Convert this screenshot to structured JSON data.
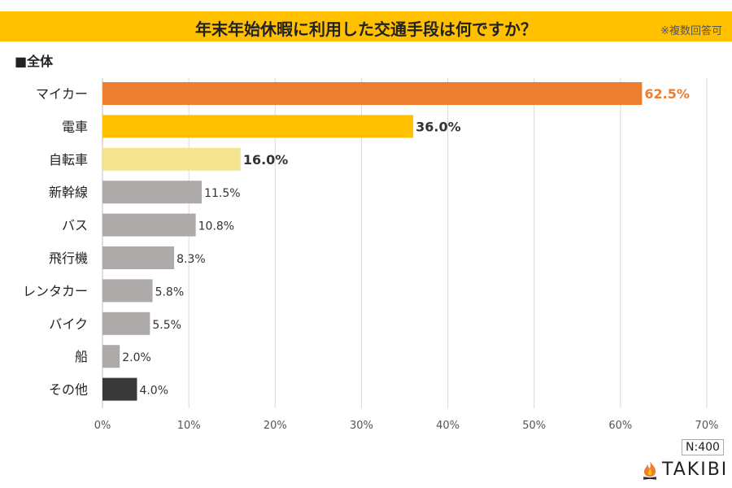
{
  "header": {
    "title": "年末年始休暇に利用した交通手段は何ですか？",
    "note": "※複数回答可"
  },
  "subtitle": "■全体",
  "sample": "N:400",
  "logo": "TAKIBI",
  "chart_data": {
    "type": "bar",
    "orientation": "horizontal",
    "categories": [
      "マイカー",
      "電車",
      "自転車",
      "新幹線",
      "バス",
      "飛行機",
      "レンタカー",
      "バイク",
      "船",
      "その他"
    ],
    "values": [
      62.5,
      36.0,
      16.0,
      11.5,
      10.8,
      8.3,
      5.8,
      5.5,
      2.0,
      4.0
    ],
    "labels": [
      "62.5%",
      "36.0%",
      "16.0%",
      "11.5%",
      "10.8%",
      "8.3%",
      "5.8%",
      "5.5%",
      "2.0%",
      "4.0%"
    ],
    "colors": [
      "#ED7D31",
      "#FFC000",
      "#F5E48F",
      "#AEAAAA",
      "#AEAAAA",
      "#AEAAAA",
      "#AEAAAA",
      "#AEAAAA",
      "#AEAAAA",
      "#3B3838"
    ],
    "label_colors": [
      "#ED7D31",
      "#333333",
      "#333333",
      "#333333",
      "#333333",
      "#333333",
      "#333333",
      "#333333",
      "#333333",
      "#333333"
    ],
    "label_bold": [
      true,
      true,
      true,
      false,
      false,
      false,
      false,
      false,
      false,
      false
    ],
    "xlim": [
      0,
      70
    ],
    "xticks": [
      "0%",
      "10%",
      "20%",
      "30%",
      "40%",
      "50%",
      "60%",
      "70%"
    ],
    "grid": true
  }
}
